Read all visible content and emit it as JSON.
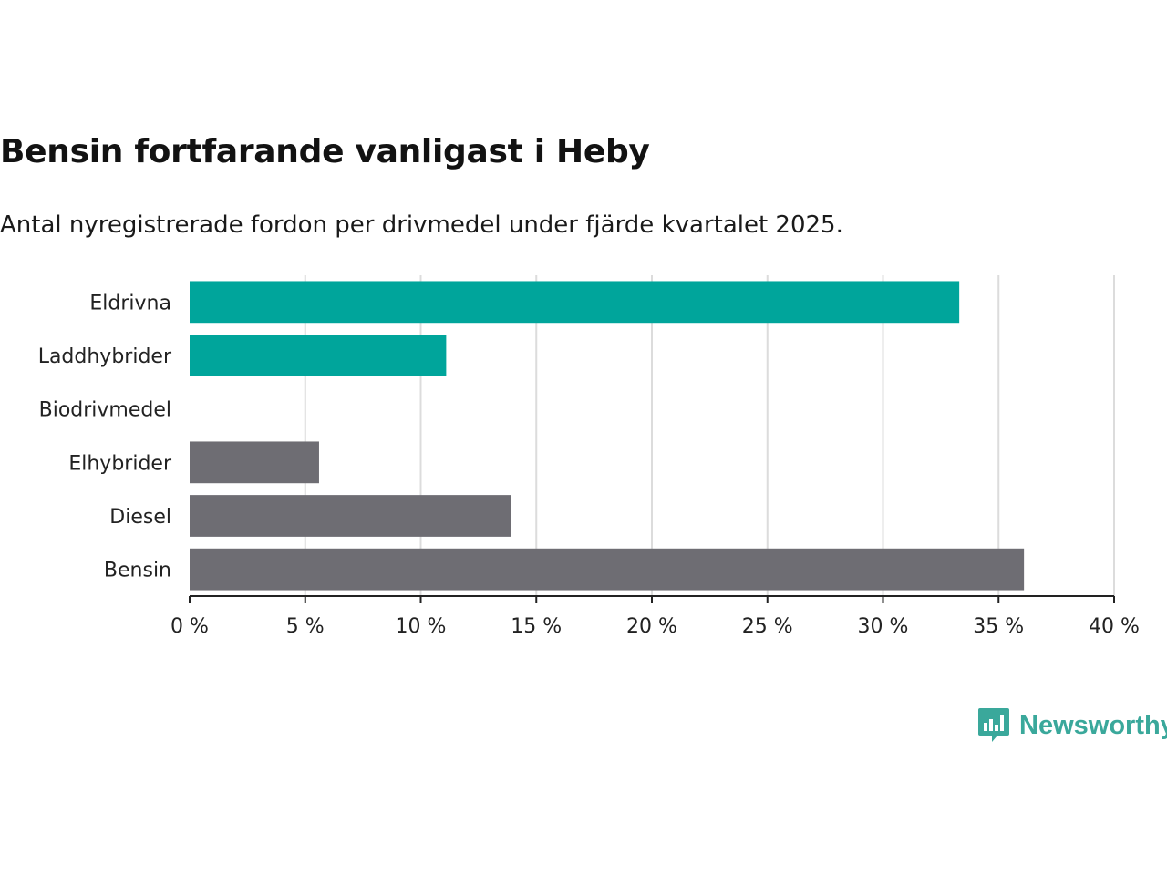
{
  "chart_data": {
    "type": "bar",
    "orientation": "horizontal",
    "title": "Bensin fortfarande vanligast i Heby",
    "subtitle": "Antal nyregistrerade fordon per drivmedel under fjärde kvartalet 2025.",
    "categories": [
      "Eldrivna",
      "Laddhybrider",
      "Biodrivmedel",
      "Elhybrider",
      "Diesel",
      "Bensin"
    ],
    "values": [
      33.3,
      11.1,
      0,
      5.6,
      13.9,
      36.1
    ],
    "bar_colors": [
      "#00a59b",
      "#00a59b",
      "#00a59b",
      "#6e6d73",
      "#6e6d73",
      "#6e6d73"
    ],
    "xlim": [
      0,
      40
    ],
    "xticks": [
      0,
      5,
      10,
      15,
      20,
      25,
      30,
      35,
      40
    ],
    "xtick_labels": [
      "0 %",
      "5 %",
      "10 %",
      "15 %",
      "20 %",
      "25 %",
      "30 %",
      "35 %",
      "40 %"
    ],
    "xlabel": "",
    "ylabel": "",
    "grid": true
  },
  "brand": {
    "name": "Newsworthy",
    "logo_icon": "newsworthy-bar-chart-icon",
    "color": "#3aa89b"
  }
}
